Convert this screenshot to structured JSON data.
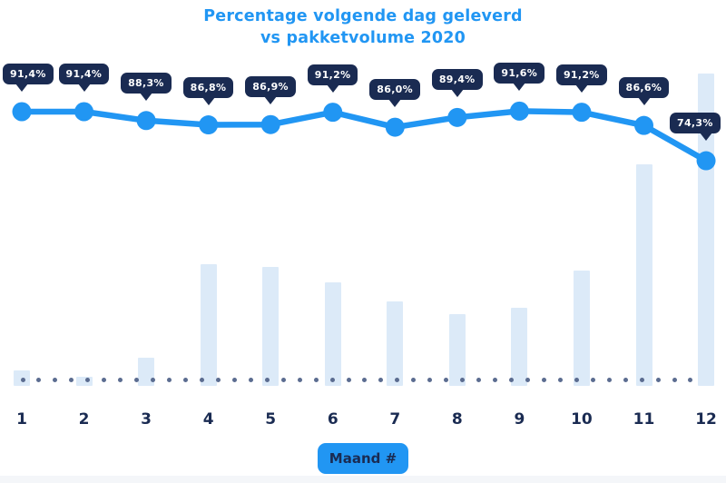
{
  "title": {
    "line1": "Percentage volgende dag geleverd",
    "line2": "vs pakketvolume 2020"
  },
  "colors": {
    "accent_blue": "#2196F3",
    "navy": "#1A2B52",
    "bar_fill": "#DCEAF8",
    "dot_gray": "#5B6C90",
    "tooltip_text": "#FFFFFF",
    "background": "#FFFFFF"
  },
  "chart_data": {
    "type": "line+bar",
    "title": "Percentage volgende dag geleverd vs pakketvolume 2020",
    "categories": [
      "1",
      "2",
      "3",
      "4",
      "5",
      "6",
      "7",
      "8",
      "9",
      "10",
      "11",
      "12"
    ],
    "xlabel": "Maand #",
    "legend": false,
    "grid": false,
    "series": [
      {
        "name": "Percentage volgende dag geleverd",
        "type": "line",
        "unit": "%",
        "values": [
          91.4,
          91.4,
          88.3,
          86.8,
          86.9,
          91.2,
          86.0,
          89.4,
          91.6,
          91.2,
          86.6,
          74.3
        ],
        "labels": [
          "91,4%",
          "91,4%",
          "88,3%",
          "86,8%",
          "86,9%",
          "91,2%",
          "86,0%",
          "89,4%",
          "91,6%",
          "91,2%",
          "86,6%",
          "74,3%"
        ]
      },
      {
        "name": "Pakketvolume 2020",
        "type": "bar",
        "unit": "relative volume (estimated, max month = 100)",
        "values": [
          5,
          3,
          9,
          39,
          38,
          33,
          27,
          23,
          25,
          37,
          71,
          100
        ]
      }
    ],
    "baseline": "dotted"
  }
}
